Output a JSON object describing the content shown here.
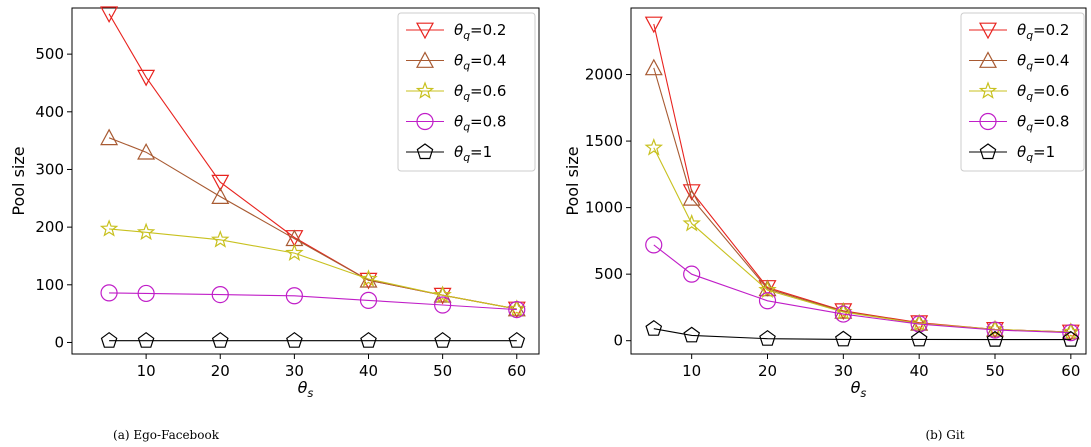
{
  "chart_data": [
    {
      "type": "line",
      "caption": "(a) Ego-Facebook",
      "xlabel": "θs",
      "ylabel": "Pool size",
      "x": [
        5,
        10,
        20,
        30,
        40,
        50,
        60
      ],
      "xlim": [
        0,
        63
      ],
      "ylim": [
        -20,
        580
      ],
      "xticks": [
        10,
        20,
        30,
        40,
        50,
        60
      ],
      "yticks": [
        0,
        100,
        200,
        300,
        400,
        500
      ],
      "legend_position": "top-right",
      "series": [
        {
          "name": "θq=0.2",
          "color": "#e8231f",
          "marker": "triangle-down",
          "values": [
            570,
            460,
            278,
            182,
            108,
            82,
            58
          ]
        },
        {
          "name": "θq=0.4",
          "color": "#a85a32",
          "marker": "triangle-up",
          "values": [
            355,
            330,
            253,
            180,
            108,
            82,
            58
          ]
        },
        {
          "name": "θq=0.6",
          "color": "#c8c11f",
          "marker": "star",
          "values": [
            197,
            191,
            178,
            155,
            110,
            82,
            58
          ]
        },
        {
          "name": "θq=0.8",
          "color": "#c01ec8",
          "marker": "circle",
          "values": [
            86,
            85,
            83,
            81,
            73,
            65,
            57
          ]
        },
        {
          "name": "θq=1",
          "color": "#000000",
          "marker": "pentagon",
          "values": [
            3,
            3,
            3,
            3,
            3,
            3,
            3
          ]
        }
      ]
    },
    {
      "type": "line",
      "caption": "(b) Git",
      "xlabel": "θs",
      "ylabel": "Pool size",
      "x": [
        5,
        10,
        20,
        30,
        40,
        50,
        60
      ],
      "xlim": [
        2,
        62
      ],
      "ylim": [
        -100,
        2500
      ],
      "xticks": [
        10,
        20,
        30,
        40,
        50,
        60
      ],
      "yticks": [
        0,
        500,
        1000,
        1500,
        2000
      ],
      "legend_position": "top-right",
      "series": [
        {
          "name": "θq=0.2",
          "color": "#e8231f",
          "marker": "triangle-down",
          "values": [
            2380,
            1120,
            400,
            225,
            135,
            85,
            65
          ]
        },
        {
          "name": "θq=0.4",
          "color": "#a85a32",
          "marker": "triangle-up",
          "values": [
            2050,
            1070,
            390,
            220,
            130,
            85,
            65
          ]
        },
        {
          "name": "θq=0.6",
          "color": "#c8c11f",
          "marker": "star",
          "values": [
            1450,
            880,
            380,
            215,
            130,
            85,
            65
          ]
        },
        {
          "name": "θq=0.8",
          "color": "#c01ec8",
          "marker": "circle",
          "values": [
            720,
            500,
            300,
            200,
            125,
            80,
            60
          ]
        },
        {
          "name": "θq=1",
          "color": "#000000",
          "marker": "pentagon",
          "values": [
            90,
            40,
            15,
            10,
            10,
            8,
            8
          ]
        }
      ]
    }
  ]
}
